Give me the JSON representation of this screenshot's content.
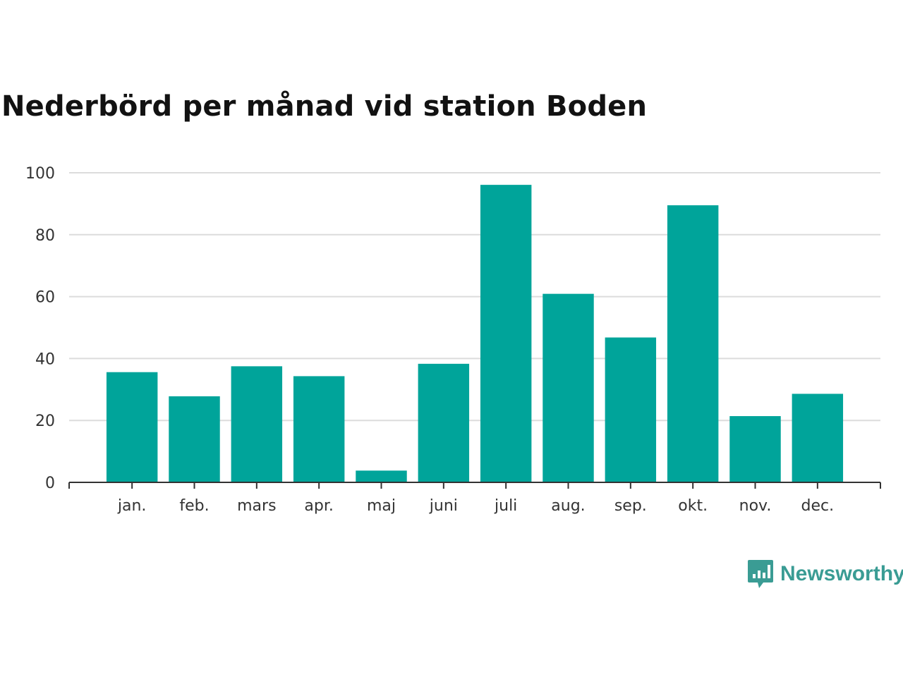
{
  "chart_data": {
    "type": "bar",
    "title": "Nederbörd per månad vid station Boden",
    "xlabel": "",
    "ylabel": "",
    "categories": [
      "jan.",
      "feb.",
      "mars",
      "apr.",
      "maj",
      "juni",
      "juli",
      "aug.",
      "sep.",
      "okt.",
      "nov.",
      "dec."
    ],
    "values": [
      35.6,
      27.8,
      37.5,
      34.3,
      3.8,
      38.3,
      96.1,
      60.9,
      46.8,
      89.5,
      21.4,
      28.6
    ],
    "ylim": [
      0,
      100
    ],
    "yticks": [
      0,
      20,
      40,
      60,
      80,
      100
    ],
    "grid": true,
    "bar_color": "#00a49a"
  },
  "branding": {
    "name": "Newsworthy",
    "icon": "newsworthy-logo-icon",
    "color": "#3a9c94"
  }
}
